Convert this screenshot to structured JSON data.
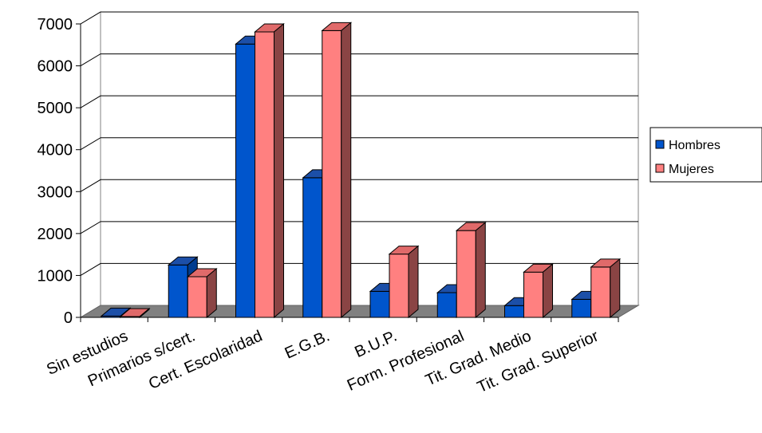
{
  "chart_data": {
    "type": "bar",
    "categories": [
      "Sin estudios",
      "Primarios s/cert.",
      "Cert. Escolaridad",
      "E.G.B.",
      "B.U.P.",
      "Form. Profesional",
      "Tit. Grad. Medio",
      "Tit. Grad. Superior"
    ],
    "series": [
      {
        "name": "Hombres",
        "values": [
          30,
          1250,
          6520,
          3330,
          620,
          590,
          280,
          430
        ],
        "color": "#0055cc",
        "top_color": "#1c4fa8",
        "side_color": "#003c8f"
      },
      {
        "name": "Mujeres",
        "values": [
          20,
          970,
          6810,
          6840,
          1510,
          2070,
          1080,
          1200
        ],
        "color": "#ff8080",
        "top_color": "#e06a6a",
        "side_color": "#8a4444"
      }
    ],
    "ylim": [
      0,
      7000
    ],
    "yticks": [
      0,
      1000,
      2000,
      3000,
      4000,
      5000,
      6000,
      7000
    ],
    "title": "",
    "xlabel": "",
    "ylabel": "",
    "grid": true,
    "legend": "right",
    "three_d": true,
    "floor_color": "#808080"
  }
}
